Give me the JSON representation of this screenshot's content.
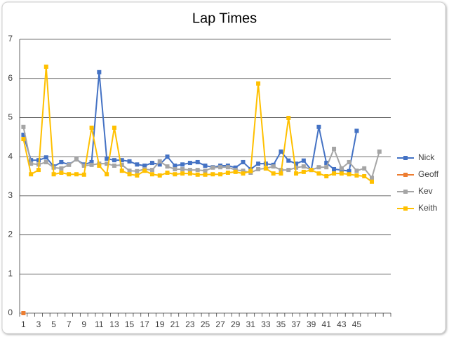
{
  "chart_data": {
    "type": "line",
    "title": "Lap Times",
    "categories": [
      1,
      2,
      3,
      4,
      5,
      6,
      7,
      8,
      9,
      10,
      11,
      12,
      13,
      14,
      15,
      16,
      17,
      18,
      19,
      20,
      21,
      22,
      23,
      24,
      25,
      26,
      27,
      28,
      29,
      30,
      31,
      32,
      33,
      34,
      35,
      36,
      37,
      38,
      39,
      40,
      41,
      42,
      43,
      44,
      45,
      46,
      null,
      48,
      null
    ],
    "category_labels": [
      1,
      null,
      3,
      null,
      5,
      null,
      7,
      null,
      9,
      null,
      11,
      null,
      13,
      null,
      15,
      null,
      17,
      null,
      19,
      null,
      21,
      null,
      23,
      null,
      25,
      null,
      27,
      null,
      29,
      null,
      31,
      null,
      33,
      null,
      35,
      null,
      37,
      null,
      39,
      null,
      41,
      null,
      43,
      null,
      45,
      null,
      null,
      null,
      null
    ],
    "ylim": [
      0,
      7
    ],
    "yticks": [
      0,
      1,
      2,
      3,
      4,
      5,
      6,
      7
    ],
    "grid": true,
    "legend": "right",
    "series": [
      {
        "name": "Nick",
        "color": "#4472c4",
        "values": [
          4.56,
          3.91,
          3.91,
          3.98,
          3.75,
          3.86,
          3.8,
          3.93,
          3.8,
          3.86,
          6.16,
          3.95,
          3.91,
          3.91,
          3.88,
          3.8,
          3.77,
          3.84,
          3.8,
          4.0,
          3.77,
          3.8,
          3.84,
          3.86,
          3.77,
          3.73,
          3.77,
          3.77,
          3.72,
          3.86,
          3.68,
          3.82,
          3.82,
          3.79,
          4.13,
          3.9,
          3.82,
          3.9,
          3.66,
          4.76,
          3.84,
          3.68,
          3.66,
          3.63,
          4.66,
          null,
          null,
          null,
          null
        ]
      },
      {
        "name": "Geoff",
        "color": "#ed7d31",
        "values": [
          0,
          null,
          null,
          null,
          null,
          null,
          null,
          null,
          null,
          null,
          null,
          null,
          null,
          null,
          null,
          null,
          null,
          null,
          null,
          null,
          null,
          null,
          null,
          null,
          null,
          null,
          null,
          null,
          null,
          null,
          null,
          null,
          null,
          null,
          null,
          null,
          null,
          null,
          null,
          null,
          null,
          null,
          null,
          null,
          null,
          null,
          null,
          null,
          null
        ]
      },
      {
        "name": "Kev",
        "color": "#a5a5a5",
        "values": [
          4.76,
          3.82,
          3.8,
          3.86,
          3.72,
          3.7,
          3.79,
          3.93,
          3.77,
          3.79,
          3.82,
          3.82,
          3.77,
          3.79,
          3.64,
          3.63,
          3.68,
          3.66,
          3.88,
          3.75,
          3.68,
          3.68,
          3.66,
          3.66,
          3.64,
          3.72,
          3.73,
          3.73,
          3.66,
          3.64,
          3.59,
          3.68,
          3.7,
          3.75,
          3.66,
          3.66,
          3.72,
          3.75,
          3.66,
          3.73,
          3.73,
          4.2,
          3.7,
          3.86,
          3.64,
          3.7,
          3.46,
          4.13,
          null
        ]
      },
      {
        "name": "Keith",
        "color": "#ffc000",
        "values": [
          4.45,
          3.55,
          3.66,
          6.3,
          3.55,
          3.59,
          3.55,
          3.55,
          3.54,
          4.74,
          3.77,
          3.55,
          4.74,
          3.64,
          3.55,
          3.52,
          3.64,
          3.55,
          3.52,
          3.59,
          3.55,
          3.57,
          3.57,
          3.54,
          3.54,
          3.55,
          3.55,
          3.59,
          3.61,
          3.57,
          3.63,
          5.87,
          3.7,
          3.57,
          3.57,
          4.99,
          3.57,
          3.61,
          3.66,
          3.57,
          3.5,
          3.57,
          3.57,
          3.55,
          3.52,
          3.5,
          3.36,
          null,
          null
        ]
      }
    ]
  }
}
